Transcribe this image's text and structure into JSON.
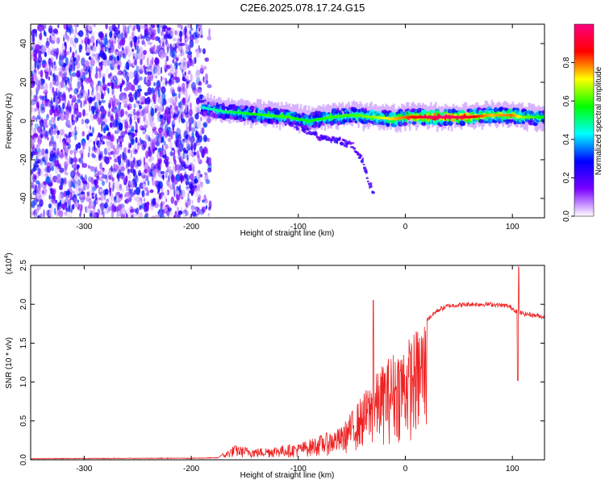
{
  "title": "C2E6.2025.078.17.24.G15",
  "chart_data": [
    {
      "type": "heatmap",
      "xlabel": "Height of straight line (km)",
      "ylabel": "Frequency (Hz)",
      "xlim": [
        -350,
        130
      ],
      "ylim": [
        -50,
        50
      ],
      "x_ticks": [
        -300,
        -200,
        -100,
        0,
        100
      ],
      "y_ticks": [
        -40,
        -20,
        0,
        20,
        40
      ],
      "colorbar": {
        "label": "Normalized spectral amplitude",
        "range": [
          0,
          1
        ],
        "ticks": [
          "0.0",
          "0.2",
          "0.4",
          "0.6",
          "0.8"
        ],
        "colors": [
          "#ffffff",
          "#7a00ff",
          "#0000ff",
          "#00ffff",
          "#00ff00",
          "#ffff00",
          "#ff0000",
          "#ff0080"
        ]
      },
      "noise_region_x": [
        -350,
        -182
      ],
      "ridge": {
        "x": [
          -190,
          -170,
          -150,
          -130,
          -110,
          -90,
          -70,
          -50,
          -30,
          -10,
          0,
          20,
          40,
          60,
          80,
          100,
          110,
          130
        ],
        "y": [
          7,
          5,
          4,
          3,
          2,
          0,
          2,
          3,
          2,
          1,
          2,
          2,
          2,
          2,
          3,
          3,
          2,
          2
        ],
        "amplitude": [
          0.4,
          0.45,
          0.5,
          0.55,
          0.55,
          0.5,
          0.55,
          0.55,
          0.6,
          0.7,
          0.75,
          0.9,
          0.95,
          0.85,
          0.7,
          0.75,
          0.6,
          0.5
        ]
      },
      "branch": {
        "x": [
          -110,
          -95,
          -80,
          -65,
          -50,
          -40,
          -35,
          -30
        ],
        "y": [
          0,
          -4,
          -8,
          -10,
          -12,
          -20,
          -30,
          -37
        ]
      }
    },
    {
      "type": "line",
      "xlabel": "Height of straight line (km)",
      "ylabel": "SNR (10 * v/v)",
      "exponent_label": "(x10",
      "exponent_power": "4",
      "exponent_close": ")",
      "xlim": [
        -350,
        130
      ],
      "ylim": [
        0,
        2.5
      ],
      "x_ticks": [
        -300,
        -200,
        -100,
        0,
        100
      ],
      "y_ticks": [
        "0.0",
        "0.5",
        "1.0",
        "1.5",
        "2.0",
        "2.5"
      ],
      "color": "#ee2222",
      "envelope": {
        "x": [
          -350,
          -200,
          -175,
          -160,
          -140,
          -120,
          -100,
          -80,
          -60,
          -50,
          -40,
          -30,
          -20,
          -10,
          0,
          10,
          20,
          30,
          40,
          60,
          80,
          95,
          100,
          105,
          110,
          120,
          130
        ],
        "y": [
          0.01,
          0.015,
          0.02,
          0.18,
          0.14,
          0.17,
          0.2,
          0.3,
          0.4,
          0.6,
          0.8,
          1.0,
          1.2,
          1.35,
          1.45,
          1.6,
          1.8,
          1.92,
          1.98,
          2.0,
          2.0,
          1.98,
          1.95,
          1.9,
          1.88,
          1.86,
          1.84
        ]
      },
      "features": [
        {
          "x": -30,
          "y": 2.05
        },
        {
          "x": 105,
          "y": 1.02
        },
        {
          "x": 106,
          "y": 2.48
        }
      ]
    }
  ]
}
